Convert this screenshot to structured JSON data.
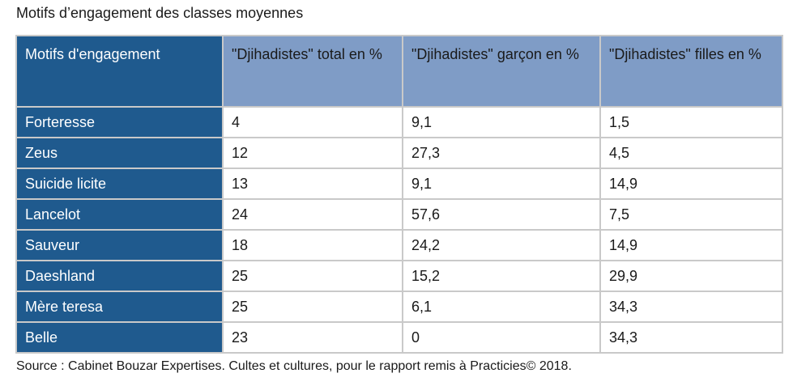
{
  "title": "Motifs d’engagement des classes moyennes",
  "table": {
    "headers": [
      "Motifs d'engagement",
      "\"Djihadistes\" total en %",
      "\"Djihadistes\" garçon en %",
      "\"Djihadistes\" filles en %"
    ],
    "rows": [
      [
        "Forteresse",
        "4",
        "9,1",
        "1,5"
      ],
      [
        "Zeus",
        "12",
        "27,3",
        "4,5"
      ],
      [
        "Suicide licite",
        "13",
        "9,1",
        "14,9"
      ],
      [
        "Lancelot",
        "24",
        "57,6",
        "7,5"
      ],
      [
        "Sauveur",
        "18",
        "24,2",
        "14,9"
      ],
      [
        "Daeshland",
        "25",
        "15,2",
        "29,9"
      ],
      [
        "Mère teresa",
        "25",
        "6,1",
        "34,3"
      ],
      [
        "Belle",
        "23",
        "0",
        "34,3"
      ]
    ]
  },
  "source": "Source : Cabinet Bouzar Expertises. Cultes et cultures, pour le rapport remis à Practicies© 2018.",
  "colors": {
    "stub_blue": "#1f5a8e",
    "header_blue": "#7f9cc6",
    "grid": "#c9c9c9"
  }
}
